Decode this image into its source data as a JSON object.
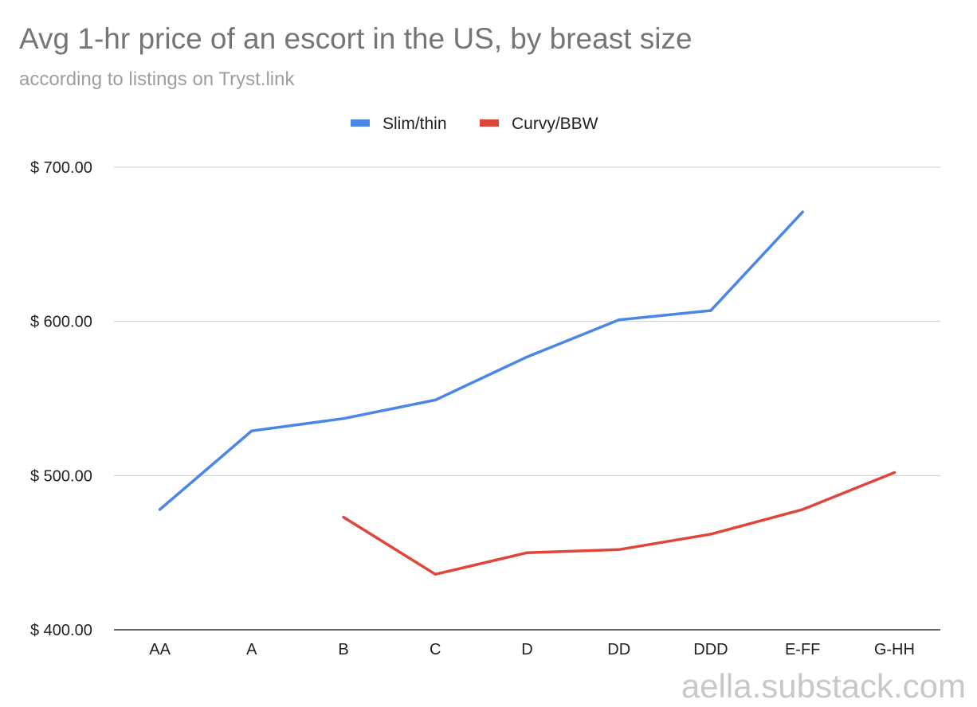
{
  "title": "Avg 1-hr price of an escort in the US, by breast size",
  "subtitle": "according to listings on Tryst.link",
  "watermark": "aella.substack.com",
  "colors": {
    "slim": "#4a86e8",
    "curvy": "#e0453a",
    "grid": "#cccccc",
    "text": "#222222"
  },
  "chart_data": {
    "type": "line",
    "title": "Avg 1-hr price of an escort in the US, by breast size",
    "subtitle": "according to listings on Tryst.link",
    "xlabel": "",
    "ylabel": "",
    "categories": [
      "AA",
      "A",
      "B",
      "C",
      "D",
      "DD",
      "DDD",
      "E-FF",
      "G-HH"
    ],
    "ylim": [
      400,
      700
    ],
    "yticks": [
      400,
      500,
      600,
      700
    ],
    "ytick_labels": [
      "$ 400.00",
      "$ 500.00",
      "$ 600.00",
      "$ 700.00"
    ],
    "grid": true,
    "legend": "top-center",
    "series": [
      {
        "name": "Slim/thin",
        "color": "#4a86e8",
        "values": [
          478,
          529,
          537,
          549,
          577,
          601,
          607,
          671,
          null
        ]
      },
      {
        "name": "Curvy/BBW",
        "color": "#e0453a",
        "values": [
          null,
          null,
          473,
          436,
          450,
          452,
          462,
          478,
          502
        ]
      }
    ]
  }
}
